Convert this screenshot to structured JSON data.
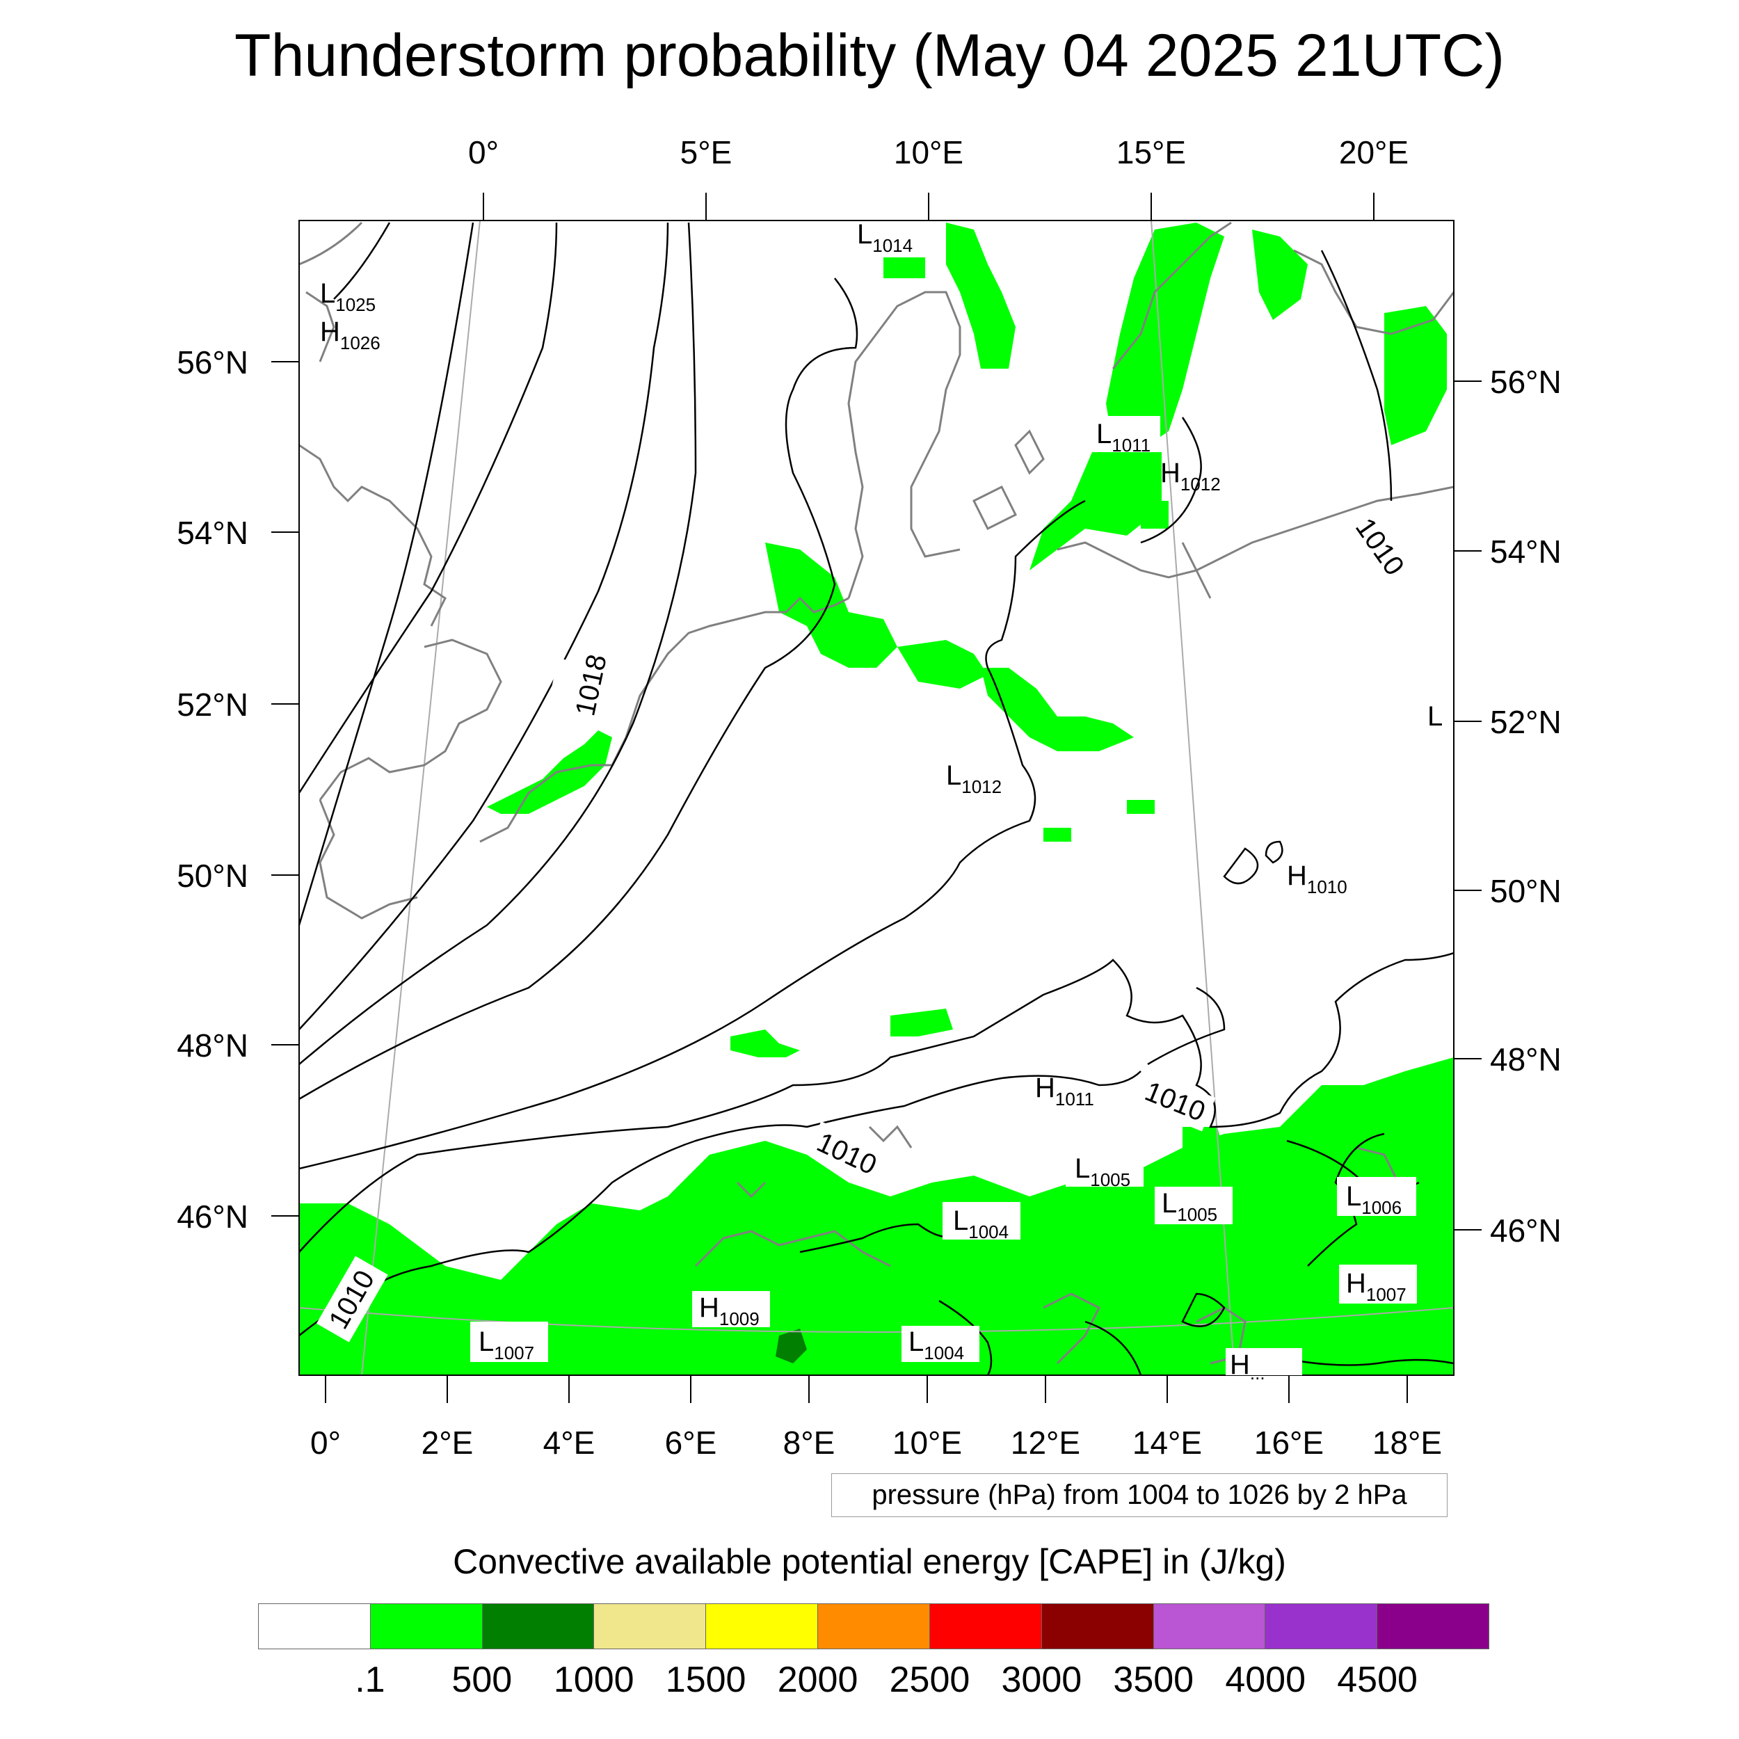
{
  "title": "Thunderstorm probability (May 04 2025 21UTC)",
  "map": {
    "top_lon_labels": [
      "0°",
      "5°E",
      "10°E",
      "15°E",
      "20°E"
    ],
    "bottom_lon_labels": [
      "0°",
      "2°E",
      "4°E",
      "6°E",
      "8°E",
      "10°E",
      "12°E",
      "14°E",
      "16°E",
      "18°E"
    ],
    "left_lat_labels": [
      "56°N",
      "54°N",
      "52°N",
      "50°N",
      "48°N",
      "46°N"
    ],
    "right_lat_labels": [
      "56°N",
      "54°N",
      "52°N",
      "50°N",
      "48°N",
      "46°N"
    ],
    "pressure_centers": [
      {
        "type": "L",
        "value": "1025"
      },
      {
        "type": "H",
        "value": "1026"
      },
      {
        "type": "L",
        "value": "1014"
      },
      {
        "type": "L",
        "value": "1011"
      },
      {
        "type": "H",
        "value": "1012"
      },
      {
        "type": "L",
        "value": "1012"
      },
      {
        "type": "H",
        "value": "1010"
      },
      {
        "type": "H",
        "value": "1011"
      },
      {
        "type": "L",
        "value": "1005"
      },
      {
        "type": "L",
        "value": "1005"
      },
      {
        "type": "L",
        "value": "1004"
      },
      {
        "type": "L",
        "value": "1006"
      },
      {
        "type": "H",
        "value": "1007"
      },
      {
        "type": "H",
        "value": "1009"
      },
      {
        "type": "L",
        "value": "1007"
      },
      {
        "type": "L",
        "value": "1004"
      },
      {
        "type": "H",
        "value": "..."
      },
      {
        "type": "L",
        "value": ""
      }
    ],
    "isobar_labels": [
      "1018",
      "1010",
      "1010",
      "1010",
      "1010"
    ]
  },
  "pressure_note": "pressure (hPa) from 1004 to 1026 by 2 hPa",
  "cape": {
    "title": "Convective available potential energy [CAPE] in (J/kg)",
    "colors": [
      "#ffffff",
      "#00ff00",
      "#007f00",
      "#f0e68c",
      "#ffff00",
      "#ff8c00",
      "#ff0000",
      "#8b0000",
      "#ba55d3",
      "#9932cc",
      "#8b008b"
    ],
    "labels": [
      ".1",
      "500",
      "1000",
      "1500",
      "2000",
      "2500",
      "3000",
      "3500",
      "4000",
      "4500"
    ]
  }
}
